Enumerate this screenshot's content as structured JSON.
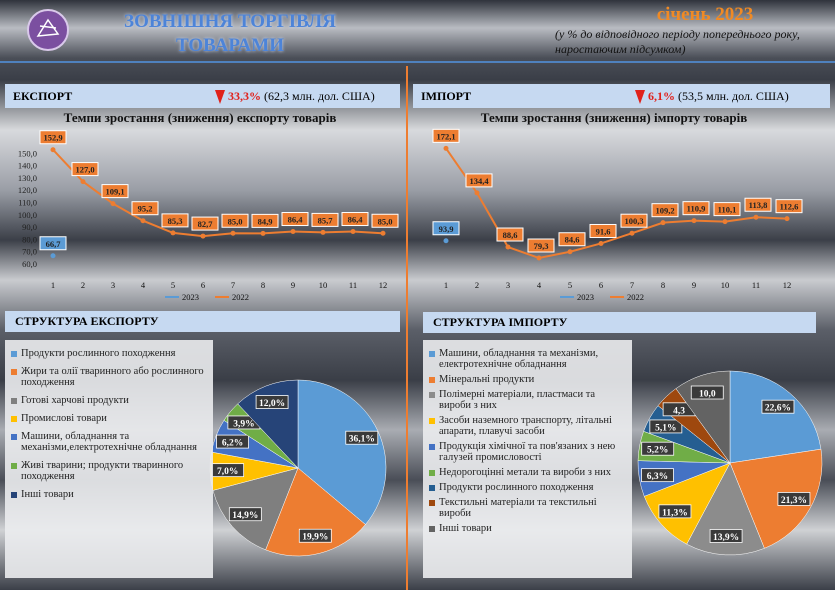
{
  "header": {
    "title_lines": [
      "ЗОВНІШНЯ ТОРГІВЛЯ",
      "ТОВАРАМИ"
    ],
    "period": "січень 2023",
    "subtitle_lines": [
      "(у % до відповідного періоду попереднього року,",
      "наростаючим підсумком)"
    ]
  },
  "panels": [
    {
      "label": "ЕКСПОРТ",
      "change": "33,3%",
      "amount": "(62,3 млн. дол. США)"
    },
    {
      "label": "ІМПОРТ",
      "change": "6,1%",
      "amount": "(53,5 млн. дол. США)"
    }
  ],
  "chart_data": [
    {
      "type": "line",
      "title": "Темпи зростання (зниження) експорту товарів",
      "categories": [
        "1",
        "2",
        "3",
        "4",
        "5",
        "6",
        "7",
        "8",
        "9",
        "10",
        "11",
        "12"
      ],
      "ylim": [
        60,
        160
      ],
      "yticks": [
        {
          "value": 60,
          "label": "60,0"
        },
        {
          "value": 70,
          "label": "70,0"
        },
        {
          "value": 80,
          "label": "80,0"
        },
        {
          "value": 90,
          "label": "90,0"
        },
        {
          "value": 100,
          "label": "100,0"
        },
        {
          "value": 110,
          "label": "110,0"
        },
        {
          "value": 120,
          "label": "120,0"
        },
        {
          "value": 130,
          "label": "130,0"
        },
        {
          "value": 140,
          "label": "140,0"
        },
        {
          "value": 150,
          "label": "150,0"
        }
      ],
      "series": [
        {
          "name": "2023",
          "color": "#5b9bd5",
          "values": [
            66.7,
            null,
            null,
            null,
            null,
            null,
            null,
            null,
            null,
            null,
            null,
            null
          ],
          "value_labels": [
            "66,7",
            null,
            null,
            null,
            null,
            null,
            null,
            null,
            null,
            null,
            null,
            null
          ]
        },
        {
          "name": "2022",
          "color": "#ed7d31",
          "values": [
            152.9,
            127.0,
            109.1,
            95.2,
            85.3,
            82.7,
            85.0,
            84.9,
            86.4,
            85.7,
            86.4,
            85.0
          ],
          "value_labels": [
            "152,9",
            "127,0",
            "109,1",
            "95,2",
            "85,3",
            "82,7",
            "85,0",
            "84,9",
            "86,4",
            "85,7",
            "86,4",
            "85,0"
          ]
        }
      ]
    },
    {
      "type": "line",
      "title": "Темпи зростання (зниження) імпорту товарів",
      "categories": [
        "1",
        "2",
        "3",
        "4",
        "5",
        "6",
        "7",
        "8",
        "9",
        "10",
        "11",
        "12"
      ],
      "ylim": [
        70,
        180
      ],
      "series": [
        {
          "name": "2023",
          "color": "#5b9bd5",
          "values": [
            93.9,
            null,
            null,
            null,
            null,
            null,
            null,
            null,
            null,
            null,
            null,
            null
          ],
          "value_labels": [
            "93,9",
            null,
            null,
            null,
            null,
            null,
            null,
            null,
            null,
            null,
            null,
            null
          ]
        },
        {
          "name": "2022",
          "color": "#ed7d31",
          "values": [
            172.1,
            134.4,
            88.6,
            79.3,
            84.6,
            91.6,
            100.3,
            109.2,
            110.9,
            110.1,
            113.8,
            112.6
          ],
          "value_labels": [
            "172,1",
            "134,4",
            "88,6",
            "79,3",
            "84,6",
            "91,6",
            "100,3",
            "109,2",
            "110,9",
            "110,1",
            "113,8",
            "112,6"
          ]
        }
      ]
    },
    {
      "type": "pie",
      "title": "СТРУКТУРА ЕКСПОРТУ",
      "categories": [
        "Продукти рослинного походження",
        "Жири та олії тваринного або рослинного походження",
        "Готові харчові продукти",
        "Промислові товари",
        "Машини, обладнання та механізми,електротехнічне обладнання",
        "Живі тварини; продукти тваринного походження",
        "Інші товари"
      ],
      "values": [
        36.1,
        19.9,
        14.9,
        7.0,
        6.2,
        3.9,
        12.0
      ],
      "value_labels": [
        "36,1%",
        "19,9%",
        "14,9%",
        "7,0%",
        "6,2%",
        "3,9%",
        "12,0%"
      ],
      "colors": [
        "#5b9bd5",
        "#ed7d31",
        "#7f7f7f",
        "#ffc000",
        "#4472c4",
        "#70ad47",
        "#264478"
      ]
    },
    {
      "type": "pie",
      "title": "СТРУКТУРА  ІМПОРТУ",
      "categories": [
        "Машини, обладнання та механізми, електротехнічне обладнання",
        "Мінеральні продукти",
        "Полімерні матеріали, пластмаси та вироби з них",
        "Засоби наземного транспорту, літальні апарати, плавучі засоби",
        "Продукція хімічної та пов'язаних з нею галузей промисловості",
        "Недорогоцінні метали та вироби з них",
        "Продукти рослинного походження",
        "Текстильні матеріали та текстильні вироби",
        "Інші товари"
      ],
      "values": [
        22.6,
        21.3,
        13.9,
        11.3,
        6.3,
        5.2,
        5.1,
        4.3,
        10.0
      ],
      "value_labels": [
        "22,6%",
        "21,3%",
        "13,9%",
        "11,3%",
        "6,3%",
        "5,2%",
        "5,1%",
        "4,3",
        "10,0"
      ],
      "colors": [
        "#5b9bd5",
        "#ed7d31",
        "#8c8c8c",
        "#ffc000",
        "#4472c4",
        "#70ad47",
        "#255e91",
        "#9e480e",
        "#636363"
      ]
    }
  ]
}
